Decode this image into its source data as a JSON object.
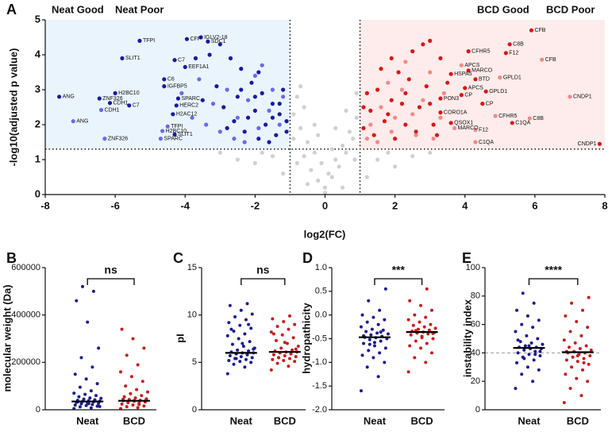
{
  "chart_data": [
    {
      "type": "scatter",
      "panel": "A",
      "x_label": "log2(FC)",
      "y_label": "-log10(adjusted p value)",
      "xlim": [
        -8,
        8
      ],
      "xticks": [
        -8,
        -6,
        -4,
        -2,
        0,
        2,
        4,
        6,
        8
      ],
      "ylim": [
        0,
        5
      ],
      "yticks": [
        0,
        1,
        2,
        3,
        4,
        5
      ],
      "thresholds": {
        "x": [
          -1,
          1
        ],
        "y": 1.3
      },
      "shading": [
        "#eaf4fc",
        "#fdeceb"
      ],
      "series": [
        {
          "color": "#d0d0d0",
          "x": [
            -0.9,
            -0.7,
            -0.5,
            -0.3,
            -0.1,
            0.1,
            0.3,
            0.5,
            0.7,
            0.9,
            -0.8,
            -0.6,
            -0.4,
            -0.2,
            0.0,
            0.2,
            0.4,
            0.6,
            0.8,
            -1.5,
            -2.0,
            -2.5,
            -3.0,
            1.5,
            2.0,
            2.5,
            3.0,
            -0.9,
            0.9,
            -0.7,
            0.2,
            -0.3,
            0.6,
            -1.2,
            1.2,
            0.0,
            -0.5,
            0.5,
            -0.8,
            0.85,
            -1.8,
            1.8,
            -0.2,
            0.3,
            -0.6
          ],
          "values": [
            2.3,
            1.9,
            1.5,
            1.2,
            0.9,
            0.6,
            1.0,
            1.4,
            1.8,
            2.2,
            2.8,
            1.1,
            0.7,
            0.4,
            0.2,
            0.5,
            0.8,
            1.2,
            1.6,
            1.1,
            0.9,
            1.0,
            1.2,
            1.0,
            0.8,
            1.1,
            1.2,
            1.6,
            2.9,
            3.1,
            1.3,
            2.0,
            2.4,
            0.6,
            0.5,
            0.05,
            0.3,
            0.2,
            0.9,
            1.0,
            1.2,
            1.2,
            1.7,
            1.9,
            2.5
          ]
        },
        {
          "name": "Neat Good",
          "color": "#6a6ae8",
          "x": [
            -4.5,
            -4.65,
            -4.7,
            -7.2,
            -6.3,
            -6.4,
            -3.6,
            -3.2,
            -2.8,
            -2.5,
            -2.2,
            -1.9,
            -1.6,
            -1.3,
            -3.0,
            -2.0,
            -1.5,
            -2.6,
            -3.8,
            -1.2,
            -2.3,
            -1.8,
            -4.1,
            -3.4
          ],
          "values": [
            1.95,
            1.82,
            1.6,
            2.1,
            1.6,
            2.42,
            3.3,
            2.6,
            3.0,
            2.2,
            2.7,
            1.9,
            2.4,
            2.0,
            1.8,
            3.4,
            3.0,
            1.6,
            2.2,
            2.8,
            1.5,
            3.7,
            2.9,
            2.0
          ],
          "labels": [
            "TFPI",
            "H2BC10",
            "SPARC",
            "ANG",
            "ZNF326",
            "CDH1",
            null,
            null,
            null,
            null,
            null,
            null,
            null,
            null,
            null,
            null,
            null,
            null,
            null,
            null,
            null,
            null,
            null,
            null
          ]
        },
        {
          "name": "Neat Poor",
          "color": "#1a1aa0",
          "x": [
            -5.3,
            -3.95,
            -3.55,
            -3.35,
            -5.8,
            -4.3,
            -4.0,
            -4.6,
            -4.6,
            -6.0,
            -6.45,
            -7.6,
            -6.15,
            -5.6,
            -4.2,
            -4.25,
            -4.35,
            -4.3,
            -3.3,
            -3.0,
            -2.7,
            -2.4,
            -2.1,
            -1.8,
            -1.5,
            -1.3,
            -1.1,
            -2.9,
            -2.6,
            -2.3,
            -2.0,
            -1.7,
            -1.4,
            -1.2,
            -3.1,
            -2.5,
            -1.9,
            -1.6,
            -2.2,
            -1.3,
            -3.5,
            -2.8,
            -1.9,
            -1.5,
            -1.1,
            -2.4,
            -3.7,
            -2.0
          ],
          "values": [
            4.4,
            4.45,
            4.5,
            4.38,
            3.9,
            3.85,
            3.65,
            3.3,
            3.1,
            2.9,
            2.75,
            2.8,
            2.62,
            2.55,
            2.75,
            2.55,
            2.3,
            1.72,
            4.0,
            4.3,
            3.9,
            3.6,
            3.2,
            2.9,
            2.6,
            2.3,
            2.1,
            2.5,
            2.1,
            1.8,
            2.4,
            2.0,
            1.7,
            3.0,
            3.1,
            2.8,
            3.5,
            1.5,
            2.2,
            2.6,
            2.7,
            1.9,
            1.6,
            2.2,
            1.8,
            3.0,
            3.9,
            2.8
          ],
          "labels": [
            "TFPI",
            "CFP",
            "IGLV2-18",
            "SDC1",
            "SLIT1",
            "C7",
            "EEF1A1",
            "C6",
            "IGFBP5",
            "H2BC10",
            "ZNF326",
            "ANG",
            "CDH1",
            "C7",
            "SPARC",
            "HERC2",
            "H2AC12",
            "SLIT1",
            null,
            null,
            null,
            null,
            null,
            null,
            null,
            null,
            null,
            null,
            null,
            null,
            null,
            null,
            null,
            null,
            null,
            null,
            null,
            null,
            null,
            null,
            null,
            null,
            null,
            null,
            null,
            null,
            null,
            null
          ]
        },
        {
          "name": "BCD Good",
          "color": "#f08a8a",
          "x": [
            6.2,
            3.9,
            5.0,
            7.0,
            4.87,
            5.85,
            3.7,
            4.3,
            4.3,
            1.3,
            1.6,
            1.9,
            2.2,
            2.5,
            2.8,
            3.1,
            3.4,
            1.2,
            1.8,
            2.6,
            3.0,
            2.0,
            1.5,
            3.3,
            2.3
          ],
          "values": [
            3.86,
            3.7,
            3.35,
            2.8,
            2.25,
            2.18,
            1.9,
            1.85,
            1.5,
            2.0,
            2.5,
            1.8,
            3.0,
            2.3,
            2.7,
            1.6,
            2.9,
            1.6,
            3.2,
            1.7,
            3.5,
            2.2,
            1.5,
            2.2,
            3.8
          ],
          "labels": [
            "CFB",
            "APCS",
            "GPLD1",
            "CNDP1",
            "CFHR5",
            "C8B",
            "MARCO",
            "F12",
            "C1QA",
            null,
            null,
            null,
            null,
            null,
            null,
            null,
            null,
            null,
            null,
            null,
            null,
            null,
            null,
            null,
            null
          ]
        },
        {
          "name": "BCD Poor",
          "color": "#d81818",
          "x": [
            5.9,
            5.28,
            4.1,
            5.17,
            4.1,
            3.6,
            4.3,
            4.0,
            4.6,
            3.9,
            3.3,
            4.5,
            3.3,
            3.6,
            5.35,
            7.85,
            1.1,
            1.3,
            1.5,
            1.7,
            1.9,
            2.1,
            2.3,
            2.5,
            2.7,
            2.9,
            3.1,
            3.3,
            1.2,
            1.4,
            1.6,
            1.8,
            2.0,
            2.2,
            2.4,
            2.6,
            2.8,
            3.0,
            3.2,
            3.5,
            1.1,
            1.9,
            2.3,
            3.0
          ],
          "values": [
            4.7,
            4.3,
            4.1,
            4.05,
            3.55,
            3.45,
            3.3,
            3.05,
            2.95,
            2.85,
            2.75,
            2.6,
            2.35,
            2.05,
            2.05,
            1.45,
            1.9,
            2.4,
            3.0,
            2.1,
            2.7,
            3.5,
            2.0,
            4.1,
            2.5,
            3.1,
            2.0,
            3.9,
            2.9,
            1.7,
            3.6,
            2.3,
            1.6,
            2.6,
            3.3,
            1.8,
            4.3,
            2.6,
            1.7,
            3.2,
            2.5,
            3.9,
            2.9,
            4.4
          ],
          "labels": [
            "CFB",
            "C8B",
            "CFHR5",
            "F12",
            "MARCO",
            "HSPA5",
            "BTD",
            "APCS",
            "GPLD1",
            "CP",
            "PON3",
            "CP",
            "CORO1A",
            "QSOX1",
            "C1QA",
            "CNDP1",
            null,
            null,
            null,
            null,
            null,
            null,
            null,
            null,
            null,
            null,
            null,
            null,
            null,
            null,
            null,
            null,
            null,
            null,
            null,
            null,
            null,
            null,
            null,
            null,
            null,
            null,
            null,
            null
          ]
        }
      ]
    },
    {
      "type": "strip",
      "panel": "B",
      "y_label": "molecular weight (Da)",
      "annotation": "ns",
      "categories": [
        "Neat",
        "BCD"
      ],
      "ylim": [
        0,
        600000
      ],
      "yticks": [
        0,
        200000,
        400000,
        600000
      ],
      "series": [
        {
          "color": "#1c1c8c",
          "median": 35000,
          "values": [
            5000,
            8000,
            12000,
            15000,
            18000,
            20000,
            22000,
            25000,
            27000,
            30000,
            32000,
            34000,
            35000,
            36000,
            38000,
            40000,
            42000,
            45000,
            48000,
            50000,
            55000,
            60000,
            65000,
            70000,
            80000,
            95000,
            110000,
            130000,
            150000,
            180000,
            220000,
            260000,
            370000,
            460000,
            500000,
            520000,
            14000,
            26000,
            33000,
            41000
          ]
        },
        {
          "color": "#c41e1e",
          "median": 38000,
          "values": [
            5000,
            9000,
            13000,
            16000,
            20000,
            24000,
            28000,
            30000,
            33000,
            36000,
            38000,
            40000,
            43000,
            46000,
            50000,
            55000,
            60000,
            68000,
            75000,
            85000,
            100000,
            120000,
            140000,
            160000,
            190000,
            230000,
            260000,
            300000,
            340000,
            22000,
            31000,
            37000,
            39000,
            44000
          ]
        }
      ]
    },
    {
      "type": "strip",
      "panel": "C",
      "y_label": "pI",
      "annotation": "ns",
      "categories": [
        "Neat",
        "BCD"
      ],
      "ylim": [
        0,
        15
      ],
      "yticks": [
        0,
        5,
        10,
        15
      ],
      "series": [
        {
          "color": "#1c1c8c",
          "median": 6.0,
          "values": [
            3.8,
            4.5,
            4.8,
            5.0,
            5.1,
            5.2,
            5.3,
            5.4,
            5.5,
            5.6,
            5.7,
            5.8,
            5.9,
            6.0,
            6.0,
            6.1,
            6.2,
            6.3,
            6.5,
            6.7,
            6.9,
            7.2,
            7.5,
            7.8,
            8.0,
            8.3,
            8.6,
            8.9,
            9.2,
            9.5,
            9.8,
            10.1,
            10.5,
            11.0,
            11.2,
            5.4,
            6.4,
            7.0,
            8.5,
            9.0
          ]
        },
        {
          "color": "#c41e1e",
          "median": 6.1,
          "values": [
            4.2,
            4.6,
            4.9,
            5.1,
            5.2,
            5.3,
            5.4,
            5.5,
            5.6,
            5.7,
            5.8,
            5.9,
            6.0,
            6.1,
            6.1,
            6.2,
            6.3,
            6.5,
            6.7,
            7.0,
            7.3,
            7.6,
            7.9,
            8.2,
            8.5,
            8.8,
            9.0,
            9.3,
            9.6,
            9.9,
            5.5,
            6.4,
            7.1,
            8.0
          ]
        }
      ]
    },
    {
      "type": "strip",
      "panel": "D",
      "y_label": "hydropathicity",
      "annotation": "***",
      "categories": [
        "Neat",
        "BCD"
      ],
      "ylim": [
        -2,
        1
      ],
      "yticks": [
        {
          "value": -2,
          "label": "-2.0"
        },
        -1.5,
        {
          "value": -1,
          "label": "-1.0"
        },
        -0.5,
        {
          "value": 0,
          "label": "0.0"
        },
        0.5,
        {
          "value": 1,
          "label": "1.0"
        }
      ],
      "series": [
        {
          "color": "#1c1c8c",
          "median": -0.47,
          "values": [
            -1.6,
            -1.3,
            -1.1,
            -1.0,
            -0.9,
            -0.85,
            -0.8,
            -0.75,
            -0.7,
            -0.65,
            -0.6,
            -0.55,
            -0.52,
            -0.5,
            -0.48,
            -0.47,
            -0.45,
            -0.42,
            -0.4,
            -0.38,
            -0.35,
            -0.32,
            -0.3,
            -0.25,
            -0.2,
            -0.15,
            -0.1,
            -0.05,
            0.0,
            0.1,
            0.3,
            0.55,
            -0.58,
            -0.44,
            -0.36,
            -0.62
          ]
        },
        {
          "color": "#c41e1e",
          "median": -0.36,
          "values": [
            -1.2,
            -1.0,
            -0.9,
            -0.8,
            -0.7,
            -0.65,
            -0.6,
            -0.55,
            -0.5,
            -0.45,
            -0.42,
            -0.4,
            -0.38,
            -0.37,
            -0.36,
            -0.34,
            -0.32,
            -0.3,
            -0.28,
            -0.25,
            -0.22,
            -0.2,
            -0.15,
            -0.1,
            -0.05,
            0.0,
            0.1,
            0.2,
            0.3,
            0.55,
            -0.33,
            -0.39,
            -0.48
          ]
        }
      ]
    },
    {
      "type": "strip",
      "panel": "E",
      "y_label": "instability index",
      "annotation": "****",
      "reference_line": 40,
      "categories": [
        "Neat",
        "BCD"
      ],
      "ylim": [
        0,
        100
      ],
      "yticks": [
        0,
        20,
        40,
        60,
        80,
        100
      ],
      "series": [
        {
          "color": "#1c1c8c",
          "median": 43.5,
          "values": [
            15,
            20,
            25,
            28,
            30,
            33,
            35,
            37,
            38,
            39,
            40,
            41,
            42,
            43,
            43,
            44,
            44,
            45,
            46,
            47,
            48,
            50,
            52,
            55,
            58,
            60,
            63,
            66,
            70,
            75,
            82,
            41,
            45,
            49,
            39,
            36
          ]
        },
        {
          "color": "#c41e1e",
          "median": 40.5,
          "values": [
            5,
            10,
            15,
            20,
            22,
            25,
            28,
            30,
            32,
            34,
            35,
            36,
            37,
            38,
            39,
            40,
            40,
            41,
            42,
            43,
            44,
            45,
            47,
            49,
            52,
            55,
            58,
            62,
            66,
            70,
            75,
            79,
            38,
            41,
            33
          ]
        }
      ]
    }
  ]
}
